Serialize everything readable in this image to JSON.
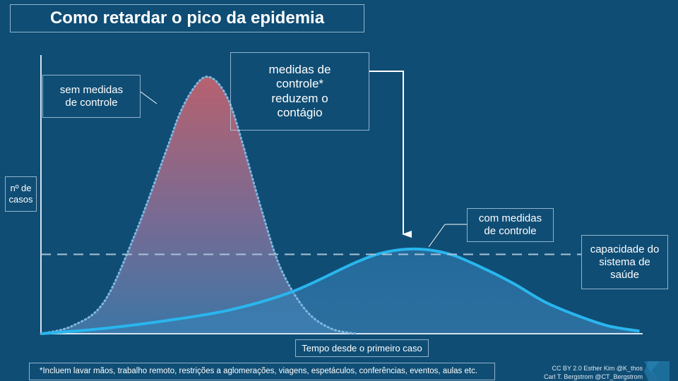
{
  "title": "Como retardar o pico da epidemia",
  "annotations": {
    "sem_medidas": [
      "sem medidas",
      "de controle"
    ],
    "medidas": [
      "medidas de",
      "controle*",
      "reduzem o",
      "contágio"
    ],
    "com_medidas": [
      "com medidas",
      "de controle"
    ],
    "capacidade": [
      "capacidade do",
      "sistema de",
      "saúde"
    ]
  },
  "footnote": "*Incluem lavar mãos, trabalho remoto, restrições a aglomerações, viagens, espetáculos, conferências, eventos, aulas etc.",
  "credit": {
    "line1": "CC BY 2.0 Esther Kim @K_thos",
    "line2": "Carl T. Bergstrom @CT_Bergstrom"
  },
  "colors": {
    "background": "#0f4d74",
    "curve_uncontrolled_top": "#c0626e",
    "curve_uncontrolled_bottom": "#3f78a8",
    "curve_controlled": "#29b6ee",
    "capacity_line": "#a9c1d6",
    "axis": "#d7e3ee"
  },
  "chart_data": {
    "type": "area",
    "title": "Como retardar o pico da epidemia",
    "xlabel": "Tempo desde o primeiro caso",
    "ylabel": [
      "nº de",
      "casos"
    ],
    "xlim": [
      0,
      100
    ],
    "ylim": [
      0,
      100
    ],
    "grid": false,
    "capacity": 30,
    "series": [
      {
        "name": "sem medidas de controle",
        "x": [
          0,
          5,
          10,
          15,
          20,
          22,
          24,
          26,
          28,
          30,
          32,
          35,
          38,
          42,
          46,
          50
        ],
        "values": [
          0,
          3,
          12,
          38,
          70,
          83,
          92,
          97,
          95,
          87,
          72,
          47,
          25,
          9,
          2,
          0
        ]
      },
      {
        "name": "com medidas de controle",
        "x": [
          0,
          10,
          20,
          30,
          40,
          50,
          55,
          60,
          65,
          70,
          75,
          80,
          85,
          90,
          95
        ],
        "values": [
          0,
          2,
          5,
          9,
          16,
          27,
          31,
          32,
          30,
          25,
          19,
          12,
          7,
          3,
          1
        ]
      }
    ]
  }
}
